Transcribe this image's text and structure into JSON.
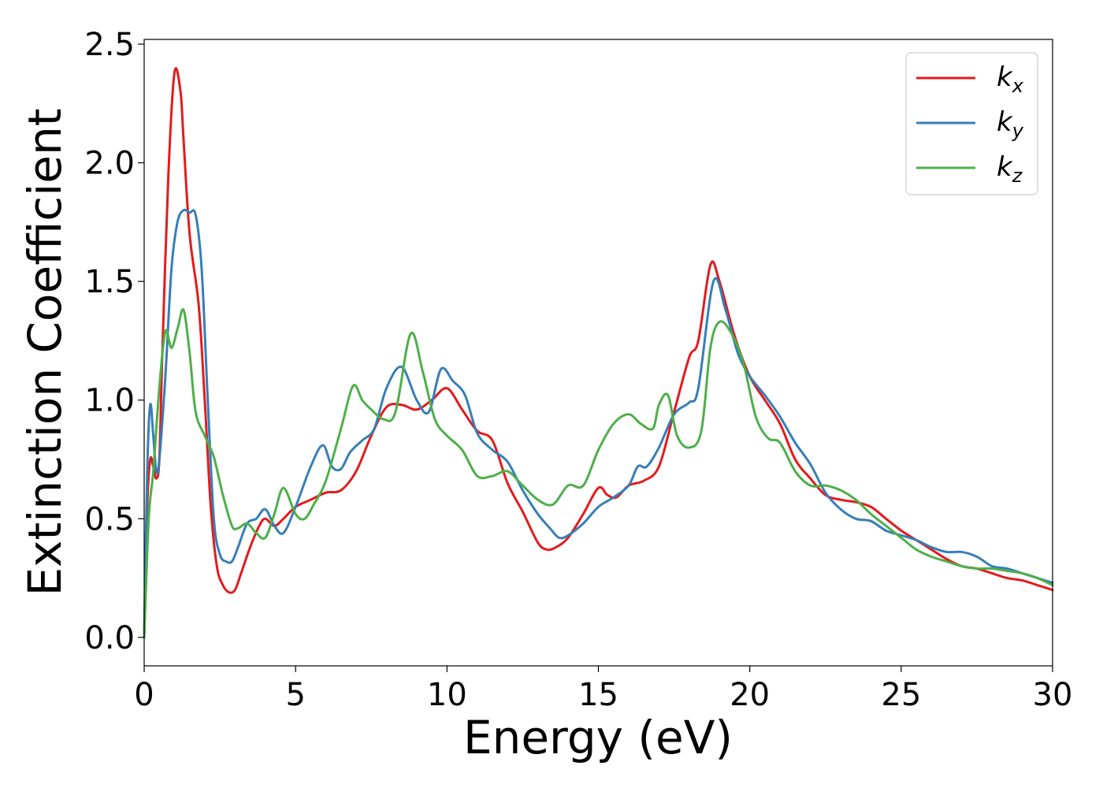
{
  "chart_data": {
    "type": "line",
    "xlabel": "Energy (eV)",
    "ylabel": "Extinction Coefficient",
    "xlim": [
      0,
      30
    ],
    "ylim": [
      -0.12,
      2.52
    ],
    "xticks": [
      "0",
      "5",
      "10",
      "15",
      "20",
      "25",
      "30"
    ],
    "yticks": [
      "0.0",
      "0.5",
      "1.0",
      "1.5",
      "2.0",
      "2.5"
    ],
    "grid": false,
    "legend_position": "top-right",
    "series": [
      {
        "name": "k_x",
        "label_main": "k",
        "label_sub": "x",
        "color": "#e41a1c",
        "x": [
          0,
          0.1,
          0.2,
          0.3,
          0.4,
          0.5,
          0.6,
          0.8,
          1.0,
          1.2,
          1.3,
          1.5,
          1.8,
          2.0,
          2.2,
          2.4,
          2.6,
          2.8,
          3.0,
          3.2,
          3.5,
          3.8,
          4.0,
          4.3,
          4.6,
          5.0,
          5.5,
          6.0,
          6.5,
          7.0,
          7.5,
          8.0,
          8.5,
          9.0,
          9.5,
          10.0,
          10.5,
          11.0,
          11.5,
          12.0,
          12.5,
          13.0,
          13.3,
          13.6,
          14.0,
          14.5,
          15.0,
          15.3,
          15.6,
          16.0,
          16.5,
          17.0,
          17.5,
          18.0,
          18.3,
          18.7,
          19.0,
          19.5,
          20.0,
          20.5,
          21.0,
          21.5,
          22.0,
          22.5,
          23.0,
          23.5,
          24.0,
          24.5,
          25.0,
          25.5,
          26.0,
          26.5,
          27.0,
          27.5,
          28.0,
          28.5,
          29.0,
          29.5,
          30.0
        ],
        "values": [
          0.0,
          0.55,
          0.75,
          0.72,
          0.67,
          0.75,
          1.2,
          1.95,
          2.38,
          2.3,
          2.1,
          1.7,
          1.4,
          1.0,
          0.55,
          0.3,
          0.22,
          0.19,
          0.2,
          0.27,
          0.38,
          0.47,
          0.5,
          0.47,
          0.5,
          0.55,
          0.58,
          0.61,
          0.62,
          0.7,
          0.85,
          0.97,
          0.98,
          0.96,
          1.0,
          1.05,
          0.96,
          0.87,
          0.83,
          0.65,
          0.53,
          0.4,
          0.37,
          0.38,
          0.42,
          0.52,
          0.63,
          0.6,
          0.59,
          0.64,
          0.66,
          0.72,
          0.95,
          1.18,
          1.25,
          1.57,
          1.5,
          1.27,
          1.1,
          1.0,
          0.9,
          0.75,
          0.67,
          0.6,
          0.58,
          0.57,
          0.55,
          0.5,
          0.45,
          0.41,
          0.37,
          0.33,
          0.3,
          0.29,
          0.27,
          0.25,
          0.24,
          0.22,
          0.2
        ]
      },
      {
        "name": "k_y",
        "label_main": "k",
        "label_sub": "y",
        "color": "#377eb8",
        "x": [
          0,
          0.1,
          0.2,
          0.3,
          0.4,
          0.5,
          0.7,
          0.9,
          1.1,
          1.3,
          1.5,
          1.7,
          1.9,
          2.1,
          2.3,
          2.5,
          2.7,
          2.9,
          3.1,
          3.4,
          3.7,
          4.0,
          4.3,
          4.6,
          5.0,
          5.5,
          5.9,
          6.2,
          6.5,
          6.8,
          7.2,
          7.6,
          8.0,
          8.5,
          9.0,
          9.4,
          9.8,
          10.2,
          10.6,
          11.0,
          11.5,
          12.0,
          12.5,
          13.0,
          13.4,
          13.7,
          14.0,
          14.5,
          15.0,
          15.5,
          16.0,
          16.3,
          16.6,
          17.0,
          17.5,
          18.0,
          18.3,
          18.8,
          19.2,
          19.6,
          20.0,
          20.5,
          21.0,
          21.5,
          22.0,
          22.5,
          23.0,
          23.5,
          24.0,
          24.5,
          25.0,
          25.5,
          26.0,
          26.5,
          27.0,
          27.5,
          28.0,
          28.5,
          29.0,
          29.5,
          30.0
        ],
        "values": [
          0.0,
          0.7,
          0.98,
          0.85,
          0.7,
          0.75,
          1.1,
          1.55,
          1.75,
          1.8,
          1.79,
          1.78,
          1.55,
          1.0,
          0.5,
          0.35,
          0.32,
          0.32,
          0.38,
          0.48,
          0.5,
          0.54,
          0.47,
          0.44,
          0.55,
          0.72,
          0.81,
          0.72,
          0.71,
          0.78,
          0.83,
          0.88,
          1.05,
          1.14,
          1.0,
          0.95,
          1.13,
          1.08,
          1.02,
          0.86,
          0.79,
          0.74,
          0.62,
          0.52,
          0.46,
          0.42,
          0.43,
          0.48,
          0.55,
          0.59,
          0.64,
          0.72,
          0.72,
          0.8,
          0.94,
          0.99,
          1.05,
          1.5,
          1.38,
          1.2,
          1.1,
          1.02,
          0.93,
          0.82,
          0.73,
          0.61,
          0.54,
          0.5,
          0.49,
          0.45,
          0.43,
          0.41,
          0.38,
          0.36,
          0.36,
          0.34,
          0.3,
          0.29,
          0.27,
          0.25,
          0.23
        ]
      },
      {
        "name": "k_z",
        "label_main": "k",
        "label_sub": "z",
        "color": "#4daf4a",
        "x": [
          0,
          0.15,
          0.3,
          0.5,
          0.7,
          0.9,
          1.1,
          1.3,
          1.5,
          1.7,
          2.0,
          2.3,
          2.6,
          2.9,
          3.1,
          3.4,
          3.7,
          4.0,
          4.3,
          4.6,
          5.0,
          5.3,
          5.6,
          6.0,
          6.5,
          6.9,
          7.2,
          7.5,
          7.9,
          8.3,
          8.8,
          9.2,
          9.6,
          10.0,
          10.5,
          11.0,
          11.5,
          12.0,
          12.5,
          13.0,
          13.5,
          14.0,
          14.5,
          15.0,
          15.5,
          16.0,
          16.4,
          16.8,
          17.0,
          17.3,
          17.6,
          18.0,
          18.4,
          18.7,
          19.0,
          19.4,
          19.8,
          20.2,
          20.6,
          21.0,
          21.5,
          22.0,
          22.5,
          23.0,
          23.5,
          24.0,
          24.5,
          25.0,
          25.5,
          26.0,
          26.5,
          27.0,
          27.5,
          28.0,
          28.5,
          29.0,
          29.5,
          30.0
        ],
        "values": [
          0.0,
          0.5,
          0.7,
          1.05,
          1.29,
          1.22,
          1.3,
          1.38,
          1.2,
          0.95,
          0.85,
          0.76,
          0.6,
          0.47,
          0.46,
          0.48,
          0.44,
          0.42,
          0.52,
          0.63,
          0.52,
          0.5,
          0.56,
          0.66,
          0.88,
          1.06,
          1.0,
          0.96,
          0.92,
          0.95,
          1.28,
          1.12,
          0.92,
          0.85,
          0.79,
          0.68,
          0.68,
          0.7,
          0.64,
          0.58,
          0.56,
          0.64,
          0.64,
          0.79,
          0.9,
          0.94,
          0.9,
          0.88,
          0.98,
          1.02,
          0.85,
          0.8,
          0.87,
          1.22,
          1.33,
          1.28,
          1.15,
          0.93,
          0.84,
          0.82,
          0.7,
          0.64,
          0.64,
          0.62,
          0.58,
          0.52,
          0.47,
          0.42,
          0.37,
          0.34,
          0.32,
          0.3,
          0.29,
          0.29,
          0.28,
          0.27,
          0.25,
          0.22
        ]
      }
    ]
  }
}
